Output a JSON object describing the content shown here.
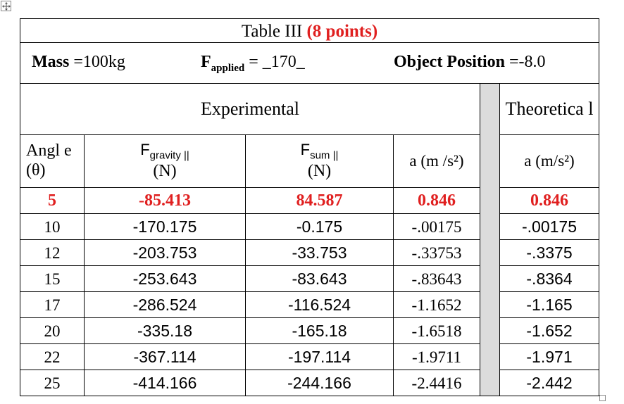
{
  "title": {
    "main": "Table III ",
    "points": "(8 points)"
  },
  "info": {
    "mass_label": "Mass ",
    "mass_value": "=100kg",
    "fapplied_label": "F",
    "fapplied_sub": "applied",
    "fapplied_value": " = _170_",
    "position_label": "Object Position ",
    "position_value": "=-8.0"
  },
  "sections": {
    "experimental": "Experimental",
    "theoretical": "Theoretica l"
  },
  "headers": {
    "angle": "Angl e (θ)",
    "fgravity_main": "F",
    "fgravity_sub": "gravity ||",
    "fgravity_unit": "(N)",
    "fsum_main": "F",
    "fsum_sub": "sum ||",
    "fsum_unit": "(N)",
    "a_exp": "a (m /s²)",
    "a_theo": "a (m/s²)"
  },
  "rows": [
    {
      "angle": "5",
      "fgravity": "-85.413",
      "fsum": "84.587",
      "a_exp": "0.846",
      "a_theo": "0.846"
    },
    {
      "angle": "10",
      "fgravity": "-170.175",
      "fsum": "-0.175",
      "a_exp": "-.00175",
      "a_theo": "-.00175"
    },
    {
      "angle": "12",
      "fgravity": "-203.753",
      "fsum": "-33.753",
      "a_exp": "-.33753",
      "a_theo": "-.3375"
    },
    {
      "angle": "15",
      "fgravity": "-253.643",
      "fsum": "-83.643",
      "a_exp": "-.83643",
      "a_theo": "-.8364"
    },
    {
      "angle": "17",
      "fgravity": "-286.524",
      "fsum": "-116.524",
      "a_exp": "-1.1652",
      "a_theo": "-1.165"
    },
    {
      "angle": "20",
      "fgravity": "-335.18",
      "fsum": "-165.18",
      "a_exp": "-1.6518",
      "a_theo": "-1.652"
    },
    {
      "angle": "22",
      "fgravity": "-367.114",
      "fsum": "-197.114",
      "a_exp": "-1.9711",
      "a_theo": "-1.971"
    },
    {
      "angle": "25",
      "fgravity": "-414.166",
      "fsum": "-244.166",
      "a_exp": "-2.4416",
      "a_theo": "-2.442"
    }
  ],
  "colors": {
    "highlight_red": "#e02020",
    "divider_gray": "#dcdcdc"
  },
  "icons": {
    "move_handle": "table-move-handle-icon",
    "resize_handle": "table-resize-handle-icon"
  }
}
